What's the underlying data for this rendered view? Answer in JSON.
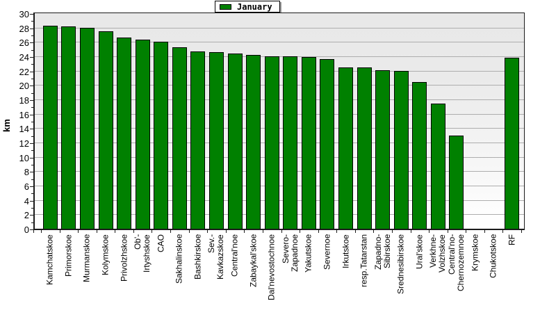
{
  "chart_data": {
    "type": "bar",
    "title": "",
    "ylabel": "km",
    "legend": [
      {
        "label": "January",
        "color": "#008000"
      }
    ],
    "legend_position": "top-center",
    "ylim": [
      0,
      30
    ],
    "ytick_step": 2,
    "yticks": [
      "0",
      "2",
      "4",
      "6",
      "8",
      "10",
      "12",
      "14",
      "16",
      "18",
      "20",
      "22",
      "24",
      "26",
      "28",
      "30"
    ],
    "grid": "horizontal",
    "grid_color": "#adadad",
    "axis_color": "#1a1a1a",
    "bar_color": "#008000",
    "bar_border_color": "#000000",
    "plot_bg_top": "#e8e8e8",
    "plot_bg_bottom": "#ffffff",
    "categories": [
      "Kamchatskoe",
      "Primorskoe",
      "Murmanskoe",
      "Kolymskoe",
      "Privolzhskoe",
      "Ob'-\nIrtyshskoe",
      "CAO",
      "Sakhalinskoe",
      "Bashkirskoe",
      "Sev.-\nKavkazskoe",
      "Central'noe",
      "Zabaykal'skoe",
      "Dal'nevostochnoe",
      "Severo-\nZapadnoe",
      "Yakutskoe",
      "Severnoe",
      "Irkutskoe",
      "resp.Tatarstan",
      "Zapadno-\nSibirskoe",
      "Srednesibirskoe",
      "Ural'skoe",
      "Verkhne-\nVolzhskoe",
      "Central'no-\nChernozemnoe",
      "Krymskoe",
      "Chukotskoe",
      "RF"
    ],
    "values": [
      28.3,
      28.2,
      28.0,
      27.5,
      26.6,
      26.3,
      26.0,
      25.3,
      24.7,
      24.6,
      24.4,
      24.2,
      24.0,
      24.0,
      23.9,
      23.6,
      22.5,
      22.5,
      22.1,
      22.0,
      20.4,
      17.4,
      13.0,
      0,
      0,
      23.8
    ]
  }
}
